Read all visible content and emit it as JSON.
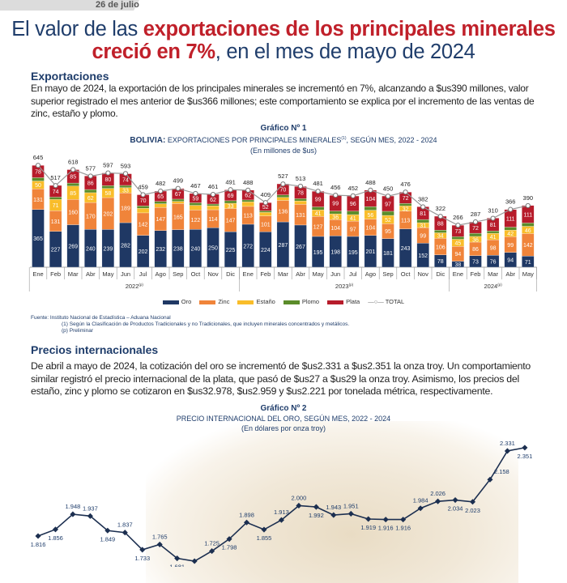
{
  "header": {
    "date": "26 de julio"
  },
  "title": {
    "part1": "El valor de las ",
    "part2": "exportaciones de los principales minerales creció en 7%",
    "part3": ", en el mes de mayo de 2024"
  },
  "section1": {
    "heading": "Exportaciones",
    "text": "En mayo de 2024, la exportación de los principales minerales se incrementó en 7%, alcanzando a $us390 millones, valor superior registrado el mes anterior de $us366 millones; este comportamiento se explica por el incremento de las ventas de zinc, estaño y plomo."
  },
  "chart1_title": {
    "label": "Gráfico Nº 1",
    "bold": "BOLIVIA:",
    "rest": " EXPORTACIONES POR PRINCIPALES MINERALES",
    "sup": "(1)",
    "end": ", SEGÚN MES, 2022 - 2024",
    "unit": "(En millones de $us)"
  },
  "sources": {
    "line1": "Fuente: Instituto Nacional de Estadística – Aduana Nacional",
    "line2": "(1) Según la Clasificación de Productos Tradicionales y no Tradicionales, que incluyen minerales concentrados y metálicos.",
    "line3": "(p) Preliminar"
  },
  "section2": {
    "heading": "Precios internacionales",
    "text": "De abril a mayo de 2024, la cotización del oro se incrementó de $us2.331 a $us2.351 la onza troy. Un comportamiento similar registró el precio internacional de la plata, que pasó de $us27 a $us29 la onza troy. Asimismo, los precios del estaño, zinc y plomo se cotizaron en $us32.978, $us2.959 y $us2.221 por tonelada métrica, respectivamente."
  },
  "chart2_title": {
    "label": "Gráfico Nº 2",
    "sub": "PRECIO INTERNACIONAL DEL ORO, SEGÚN MES, 2022 - 2024",
    "unit": "(En dólares por onza troy)"
  },
  "chart_data": [
    {
      "type": "bar",
      "stacked": true,
      "title": "BOLIVIA: EXPORTACIONES POR PRINCIPALES MINERALES, SEGÚN MES, 2022 - 2024",
      "ylabel": "En millones de $us",
      "categories": [
        "Ene",
        "Feb",
        "Mar",
        "Abr",
        "May",
        "Jun",
        "Jul",
        "Ago",
        "Sep",
        "Oct",
        "Nov",
        "Dic",
        "Ene",
        "Feb",
        "Mar",
        "Abr",
        "May",
        "Jun",
        "Jul",
        "Ago",
        "Sep",
        "Oct",
        "Nov",
        "Dic",
        "Ene",
        "Feb",
        "Mar",
        "Abr",
        "May"
      ],
      "years": [
        {
          "label": "2022",
          "sup": "(p)",
          "count": 12
        },
        {
          "label": "2023",
          "sup": "(p)",
          "count": 12
        },
        {
          "label": "2024",
          "sup": "(p)",
          "count": 5
        }
      ],
      "series": [
        {
          "name": "Oro",
          "color": "#1f3864",
          "values": [
            365,
            227,
            269,
            240,
            239,
            282,
            202,
            232,
            238,
            240,
            250,
            225,
            272,
            224,
            287,
            267,
            195,
            198,
            195,
            201,
            181,
            243,
            152,
            78,
            38,
            73,
            76,
            94,
            71
          ]
        },
        {
          "name": "Zinc",
          "color": "#f0843a",
          "values": [
            131,
            131,
            160,
            170,
            202,
            189,
            142,
            147,
            165,
            122,
            114,
            147,
            113,
            101,
            136,
            131,
            127,
            104,
            97,
            104,
            95,
            113,
            99,
            106,
            94,
            86,
            98,
            99,
            142
          ]
        },
        {
          "name": "Estaño",
          "color": "#f9bd2a",
          "values": [
            50,
            71,
            85,
            62,
            58,
            33,
            29,
            23,
            14,
            30,
            25,
            33,
            29,
            22,
            19,
            22,
            41,
            36,
            41,
            56,
            52,
            32,
            31,
            34,
            45,
            36,
            41,
            42,
            46
          ]
        },
        {
          "name": "Plomo",
          "color": "#5b8c2a",
          "values": [
            21,
            15,
            19,
            20,
            18,
            14,
            16,
            15,
            14,
            16,
            11,
            16,
            12,
            10,
            16,
            14,
            19,
            18,
            22,
            23,
            26,
            16,
            20,
            17,
            16,
            20,
            15,
            19,
            21
          ]
        },
        {
          "name": "Plata",
          "color": "#b71c2b",
          "values": [
            78,
            74,
            85,
            86,
            80,
            74,
            70,
            65,
            67,
            59,
            62,
            69,
            62,
            52,
            70,
            78,
            99,
            99,
            96,
            104,
            97,
            72,
            81,
            88,
            73,
            72,
            81,
            111,
            111
          ]
        }
      ],
      "total": {
        "name": "TOTAL",
        "values": [
          645,
          517,
          618,
          577,
          597,
          593,
          459,
          482,
          499,
          467,
          461,
          491,
          488,
          409,
          527,
          513,
          481,
          456,
          452,
          488,
          450,
          476,
          382,
          322,
          266,
          287,
          310,
          366,
          390
        ]
      },
      "legend": "bottom-center"
    },
    {
      "type": "line",
      "title": "PRECIO INTERNACIONAL DEL ORO, SEGÚN MES, 2022 - 2024",
      "ylabel": "En dólares por onza troy",
      "color": "#1c2f50",
      "values": [
        1816,
        1856,
        1948,
        1937,
        1849,
        1837,
        1733,
        1765,
        1681,
        1664,
        1725,
        1798,
        1898,
        1855,
        1913,
        2000,
        1992,
        1943,
        1951,
        1919,
        1916,
        1916,
        1984,
        2026,
        2034,
        2023,
        2158,
        2331,
        2351
      ],
      "labels": [
        "1.816",
        "1.856",
        "1.948",
        "1.937",
        "1.849",
        "1.837",
        "1.733",
        "1.765",
        "1.681",
        "1.664",
        "1.725",
        "1.798",
        "1.898",
        "1.855",
        "1.913",
        "2.000",
        "1.992",
        "1.943",
        "1.951",
        "1.919",
        "1.916",
        "1.916",
        "1.984",
        "2.026",
        "2.034",
        "2.023",
        "2.158",
        "2.331",
        "2.351"
      ]
    }
  ]
}
